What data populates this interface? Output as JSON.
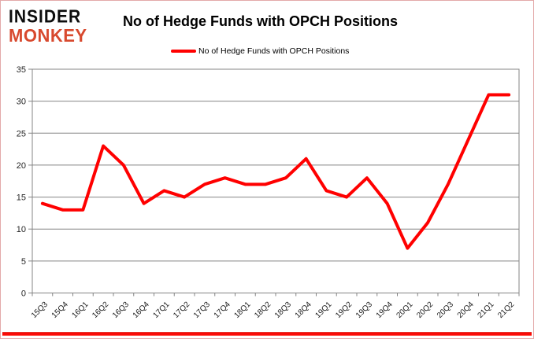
{
  "logo": {
    "line1": "INSIDER",
    "line2": "MONKEY"
  },
  "header": {
    "title": "No of Hedge Funds with OPCH Positions"
  },
  "legend": {
    "label": "No of Hedge Funds with OPCH Positions"
  },
  "colors": {
    "logo_red": "#d8492e",
    "series_red": "#FF0000",
    "axis_gray": "#848484",
    "bottom_bar_red": "#fb0300",
    "frame_border_pink": "#e3a9a9"
  },
  "chart_data": {
    "type": "line",
    "title": "No of Hedge Funds with OPCH Positions",
    "categories": [
      "15Q3",
      "15Q4",
      "16Q1",
      "16Q2",
      "16Q3",
      "16Q4",
      "17Q1",
      "17Q2",
      "17Q3",
      "17Q4",
      "18Q1",
      "18Q2",
      "18Q3",
      "18Q4",
      "19Q1",
      "19Q2",
      "19Q3",
      "19Q4",
      "20Q1",
      "20Q2",
      "20Q3",
      "20Q4",
      "21Q1",
      "21Q2"
    ],
    "series": [
      {
        "name": "No of Hedge Funds with OPCH Positions",
        "color": "#FF0000",
        "values": [
          14,
          13,
          13,
          23,
          20,
          14,
          16,
          15,
          17,
          18,
          17,
          17,
          18,
          21,
          16,
          15,
          18,
          14,
          7,
          11,
          17,
          24,
          31,
          31
        ]
      }
    ],
    "xlabel": "",
    "ylabel": "",
    "ylim": [
      0,
      35
    ],
    "ytick_step": 5,
    "grid": true,
    "legend_position": "top-center",
    "x_label_rotation_deg": -45
  }
}
